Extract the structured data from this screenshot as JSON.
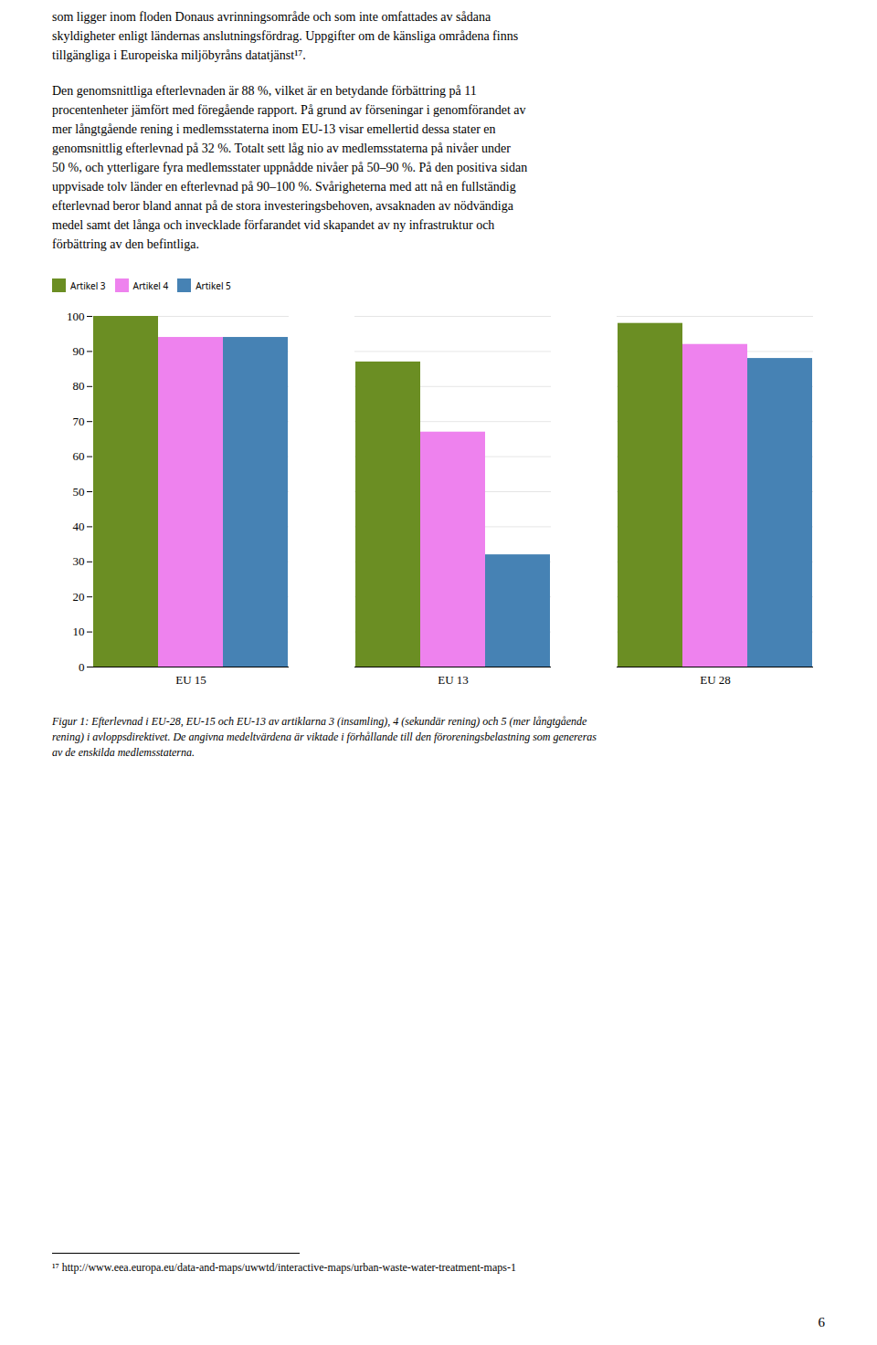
{
  "body": [
    [
      "som ligger inom floden Donaus avrinningsområde och som inte omfattades av sådana",
      "skyldigheter enligt ländernas anslutningsfördrag. Uppgifter om de känsliga områdena finns",
      "tillgängliga i Europeiska miljöbyråns datatjänst¹⁷."
    ],
    [
      "Den genomsnittliga efterlevnaden är 88 %, vilket är en betydande förbättring på 11",
      "procentenheter jämfört med föregående rapport. På grund av förseningar i genomförandet av",
      "mer långtgående rening i medlemsstaterna inom EU-13 visar emellertid dessa stater en",
      "genomsnittlig efterlevnad på 32 %. Totalt sett låg nio av medlemsstaterna på nivåer under",
      "50 %, och ytterligare fyra medlemsstater uppnådde nivåer på 50–90 %. På den positiva sidan",
      "uppvisade tolv länder en efterlevnad på 90–100 %. Svårigheterna med att nå en fullständig",
      "efterlevnad beror bland annat på de stora investeringsbehoven, avsaknaden av nödvändiga",
      "medel samt det långa och invecklade förfarandet vid skapandet av ny infrastruktur och",
      "förbättring av den befintliga."
    ]
  ],
  "caption": [
    "Figur 1: Efterlevnad i EU-28, EU-15 och EU-13 av artiklarna 3 (insamling), 4 (sekundär rening) och 5 (mer långtgående",
    "rening) i avloppsdirektivet. De angivna medeltvärdena är viktade i förhållande till den föroreningsbelastning som genereras",
    "av de enskilda medlemsstaterna."
  ],
  "footnote": "¹⁷ http://www.eea.europa.eu/data-and-maps/uwwtd/interactive-maps/urban-waste-water-treatment-maps-1",
  "page_number": "6",
  "chart_data": {
    "type": "bar",
    "categories": [
      "EU 15",
      "EU 13",
      "EU 28"
    ],
    "series": [
      {
        "name": "Artikel 3",
        "color": "#6b8e23",
        "values": [
          100,
          87,
          98
        ]
      },
      {
        "name": "Artikel 4",
        "color": "#ee82ee",
        "values": [
          94,
          67,
          92
        ]
      },
      {
        "name": "Artikel 5",
        "color": "#4682b4",
        "values": [
          94,
          32,
          88
        ]
      }
    ],
    "ylim": [
      0,
      100
    ],
    "yticks": [
      0,
      10,
      20,
      30,
      40,
      50,
      60,
      70,
      80,
      90,
      100
    ],
    "grid": true,
    "legend": "top"
  }
}
